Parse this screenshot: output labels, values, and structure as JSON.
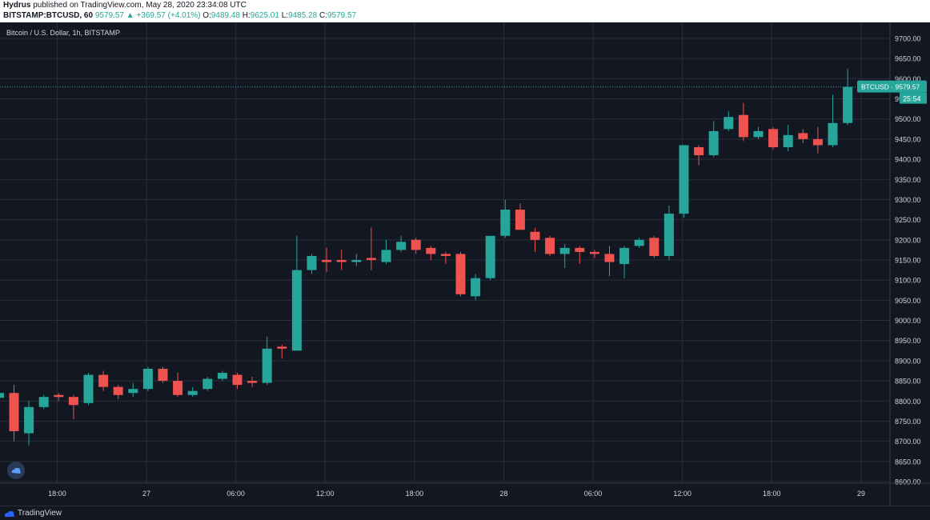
{
  "header": {
    "author": "Hydrus",
    "published_text": " published on TradingView.com, May 28, 2020 23:34:08 UTC",
    "symbol": "BITSTAMP:BTCUSD, 60",
    "last": "9579.57",
    "change": "▲ +369.57 (+4.01%)",
    "o_label": "O:",
    "o_value": "9489.48",
    "h_label": "H:",
    "h_value": "9625.01",
    "l_label": "L:",
    "l_value": "9485.28",
    "c_label": "C:",
    "c_value": "9579.57"
  },
  "footer": {
    "brand": "TradingView"
  },
  "colors": {
    "background": "#131722",
    "grid": "#2a2e39",
    "up": "#26a69a",
    "down": "#ef5350",
    "text": "#d1d4dc"
  },
  "chart_data": {
    "type": "candlestick",
    "title": "Bitcoin / U.S. Dollar, 1h, BITSTAMP",
    "symbol_tag": "BTCUSD",
    "last_price": 9579.57,
    "last_price_label": "BTCUSD · 9579.57",
    "countdown": "25:54",
    "ylim": [
      8600,
      9700
    ],
    "y_ticks": [
      "9700.00",
      "9650.00",
      "9600.00",
      "9550.00",
      "9500.00",
      "9450.00",
      "9400.00",
      "9350.00",
      "9300.00",
      "9250.00",
      "9200.00",
      "9150.00",
      "9100.00",
      "9050.00",
      "9000.00",
      "8950.00",
      "8900.00",
      "8850.00",
      "8800.00",
      "8750.00",
      "8700.00",
      "8650.00",
      "8600.00"
    ],
    "y_tick_values": [
      9700,
      9650,
      9600,
      9550,
      9500,
      9450,
      9400,
      9350,
      9300,
      9250,
      9200,
      9150,
      9100,
      9050,
      9000,
      8950,
      8900,
      8850,
      8800,
      8750,
      8700,
      8650,
      8600
    ],
    "x_ticks": [
      {
        "label": "18:00",
        "index": 2.9
      },
      {
        "label": "27",
        "index": 8.9
      },
      {
        "label": "06:00",
        "index": 14.9
      },
      {
        "label": "12:00",
        "index": 20.9
      },
      {
        "label": "18:00",
        "index": 26.9
      },
      {
        "label": "28",
        "index": 32.9
      },
      {
        "label": "06:00",
        "index": 38.9
      },
      {
        "label": "12:00",
        "index": 44.9
      },
      {
        "label": "18:00",
        "index": 50.9
      },
      {
        "label": "29",
        "index": 56.9
      }
    ],
    "candles": [
      [
        8820,
        8840,
        8700,
        8725
      ],
      [
        8720,
        8800,
        8690,
        8785
      ],
      [
        8785,
        8815,
        8780,
        8810
      ],
      [
        8815,
        8820,
        8800,
        8810
      ],
      [
        8810,
        8815,
        8755,
        8790
      ],
      [
        8795,
        8870,
        8790,
        8865
      ],
      [
        8865,
        8875,
        8825,
        8835
      ],
      [
        8835,
        8840,
        8805,
        8815
      ],
      [
        8820,
        8845,
        8810,
        8830
      ],
      [
        8830,
        8885,
        8825,
        8880
      ],
      [
        8880,
        8885,
        8845,
        8850
      ],
      [
        8850,
        8870,
        8810,
        8815
      ],
      [
        8815,
        8835,
        8810,
        8825
      ],
      [
        8830,
        8860,
        8825,
        8855
      ],
      [
        8855,
        8875,
        8850,
        8870
      ],
      [
        8865,
        8870,
        8830,
        8840
      ],
      [
        8850,
        8860,
        8835,
        8845
      ],
      [
        8845,
        8960,
        8840,
        8930
      ],
      [
        8935,
        8940,
        8905,
        8930
      ],
      [
        8925,
        9210,
        8925,
        9125
      ],
      [
        9125,
        9165,
        9115,
        9160
      ],
      [
        9150,
        9180,
        9120,
        9145
      ],
      [
        9150,
        9175,
        9125,
        9145
      ],
      [
        9145,
        9165,
        9135,
        9150
      ],
      [
        9155,
        9230,
        9125,
        9150
      ],
      [
        9145,
        9200,
        9140,
        9175
      ],
      [
        9175,
        9210,
        9170,
        9195
      ],
      [
        9200,
        9205,
        9165,
        9175
      ],
      [
        9180,
        9185,
        9150,
        9165
      ],
      [
        9165,
        9170,
        9140,
        9160
      ],
      [
        9165,
        9170,
        9060,
        9065
      ],
      [
        9060,
        9115,
        9050,
        9105
      ],
      [
        9105,
        9205,
        9100,
        9210
      ],
      [
        9210,
        9300,
        9205,
        9275
      ],
      [
        9275,
        9290,
        9225,
        9225
      ],
      [
        9220,
        9230,
        9170,
        9200
      ],
      [
        9205,
        9210,
        9160,
        9165
      ],
      [
        9165,
        9190,
        9130,
        9180
      ],
      [
        9180,
        9185,
        9140,
        9170
      ],
      [
        9170,
        9175,
        9155,
        9165
      ],
      [
        9165,
        9185,
        9110,
        9145
      ],
      [
        9140,
        9185,
        9105,
        9180
      ],
      [
        9185,
        9205,
        9180,
        9200
      ],
      [
        9205,
        9210,
        9155,
        9160
      ],
      [
        9160,
        9285,
        9150,
        9265
      ],
      [
        9265,
        9435,
        9255,
        9435
      ],
      [
        9430,
        9435,
        9385,
        9410
      ],
      [
        9410,
        9495,
        9405,
        9470
      ],
      [
        9475,
        9520,
        9470,
        9505
      ],
      [
        9510,
        9540,
        9445,
        9455
      ],
      [
        9455,
        9480,
        9450,
        9470
      ],
      [
        9475,
        9480,
        9425,
        9430
      ],
      [
        9430,
        9485,
        9420,
        9460
      ],
      [
        9465,
        9475,
        9440,
        9450
      ],
      [
        9450,
        9480,
        9415,
        9435
      ],
      [
        9435,
        9560,
        9430,
        9490
      ],
      [
        9490,
        9625,
        9485,
        9579.57
      ]
    ]
  }
}
